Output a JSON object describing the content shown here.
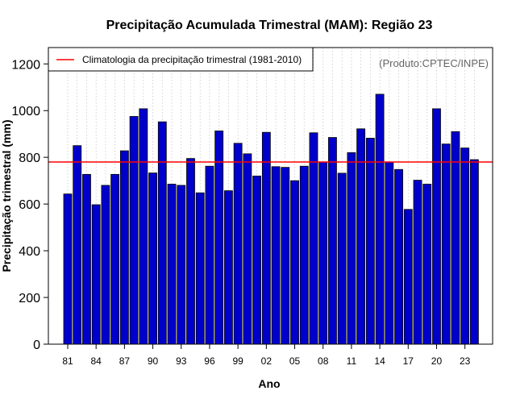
{
  "chart_data": {
    "type": "bar",
    "title": "Precipitação Acumulada Trimestral (MAM): Região 23",
    "xlabel": "Ano",
    "ylabel": "Precipitação trimestral (mm)",
    "ylim": [
      0,
      1270
    ],
    "yticks": [
      0,
      200,
      400,
      600,
      800,
      1000,
      1200
    ],
    "years": [
      1981,
      1982,
      1983,
      1984,
      1985,
      1986,
      1987,
      1988,
      1989,
      1990,
      1991,
      1992,
      1993,
      1994,
      1995,
      1996,
      1997,
      1998,
      1999,
      2000,
      2001,
      2002,
      2003,
      2004,
      2005,
      2006,
      2007,
      2008,
      2009,
      2010,
      2011,
      2012,
      2013,
      2014,
      2015,
      2016,
      2017,
      2018,
      2019,
      2020,
      2021,
      2022,
      2023,
      2024
    ],
    "tick_labels": [
      "81",
      "84",
      "87",
      "90",
      "93",
      "96",
      "99",
      "02",
      "05",
      "08",
      "11",
      "14",
      "17",
      "20",
      "23"
    ],
    "tick_years": [
      1981,
      1984,
      1987,
      1990,
      1993,
      1996,
      1999,
      2002,
      2005,
      2008,
      2011,
      2014,
      2017,
      2020,
      2023
    ],
    "values": [
      643,
      850,
      727,
      597,
      680,
      727,
      828,
      975,
      1008,
      733,
      952,
      685,
      680,
      795,
      648,
      762,
      913,
      657,
      860,
      815,
      720,
      907,
      760,
      757,
      700,
      762,
      905,
      780,
      885,
      732,
      820,
      922,
      882,
      1070,
      780,
      748,
      577,
      702,
      685,
      1008,
      857,
      910,
      840,
      790
    ],
    "bar_color": "#0000cc",
    "climatology": {
      "value": 780,
      "color": "#ff0000",
      "label": "Climatologia da precipitação trimestral (1981-2010)"
    },
    "legend_position": "top-left",
    "grid": "vertical dotted"
  },
  "source_note": "(Produto:CPTEC/INPE)"
}
